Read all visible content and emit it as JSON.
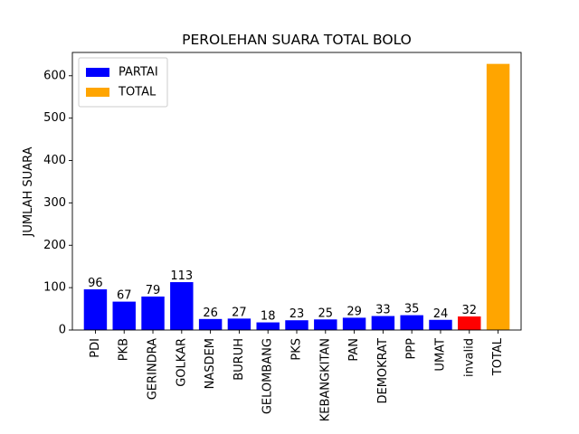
{
  "chart_data": {
    "type": "bar",
    "title": "PEROLEHAN SUARA TOTAL BOLO",
    "xlabel": "",
    "ylabel": "JUMLAH SUARA",
    "ylim": [
      0,
      655
    ],
    "yticks": [
      0,
      100,
      200,
      300,
      400,
      500,
      600
    ],
    "categories": [
      "PDI",
      "PKB",
      "GERINDRA",
      "GOLKAR",
      "NASDEM",
      "BURUH",
      "GELOMBANG",
      "PKS",
      "KEBANGKITAN",
      "PAN",
      "DEMOKRAT",
      "PPP",
      "UMAT",
      "invalid",
      "TOTAL"
    ],
    "values": [
      96,
      67,
      79,
      113,
      26,
      27,
      18,
      23,
      25,
      29,
      33,
      35,
      24,
      32,
      628
    ],
    "bar_labels": [
      "96",
      "67",
      "79",
      "113",
      "26",
      "27",
      "18",
      "23",
      "25",
      "29",
      "33",
      "35",
      "24",
      "32",
      ""
    ],
    "bar_groups": [
      "PARTAI",
      "PARTAI",
      "PARTAI",
      "PARTAI",
      "PARTAI",
      "PARTAI",
      "PARTAI",
      "PARTAI",
      "PARTAI",
      "PARTAI",
      "PARTAI",
      "PARTAI",
      "PARTAI",
      "invalid",
      "TOTAL"
    ],
    "colors": {
      "PARTAI": "#0000ff",
      "invalid": "#ff0000",
      "TOTAL": "#ffa500"
    },
    "legend": {
      "position": "upper-left",
      "items": [
        {
          "label": "PARTAI",
          "color": "#0000ff"
        },
        {
          "label": "TOTAL",
          "color": "#ffa500"
        }
      ]
    },
    "grid": false
  }
}
